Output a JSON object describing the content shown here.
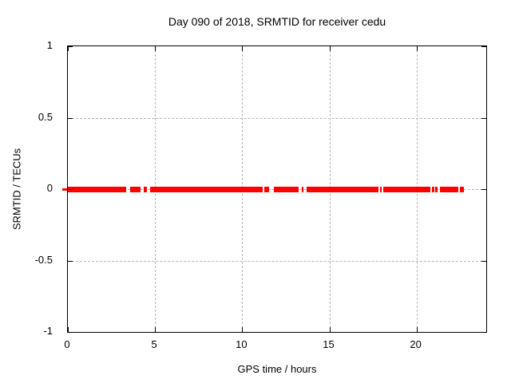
{
  "chart_data": {
    "type": "scatter",
    "title": "Day 090 of 2018, SRMTID for receiver cedu",
    "xlabel": "GPS time / hours",
    "ylabel": "SRMTID / TECUs",
    "xlim": [
      0,
      24
    ],
    "ylim": [
      -1,
      1
    ],
    "xticks": [
      0,
      5,
      10,
      15,
      20
    ],
    "yticks": [
      -1,
      -0.5,
      0,
      0.5,
      1
    ],
    "grid": true,
    "legend": "none",
    "series": [
      {
        "name": "SRMTID",
        "color": "#ff0000",
        "y_value": 0,
        "description": "dense horizontal band of points at y=0 with gaps",
        "segments_hours": [
          [
            0.0,
            3.36
          ],
          [
            3.57,
            4.17
          ],
          [
            4.37,
            4.55
          ],
          [
            4.73,
            11.19
          ],
          [
            11.28,
            11.53
          ],
          [
            11.8,
            13.25
          ],
          [
            13.41,
            13.53
          ],
          [
            13.71,
            17.83
          ],
          [
            17.9,
            17.99
          ],
          [
            18.08,
            20.78
          ],
          [
            20.89,
            21.01
          ],
          [
            21.08,
            21.19
          ],
          [
            21.34,
            22.41
          ],
          [
            22.49,
            22.72
          ]
        ]
      }
    ],
    "colors": {
      "data": "#ff0000",
      "grid": "#b5b5b5",
      "border": "#000000",
      "background": "#ffffff",
      "text": "#000000"
    }
  }
}
